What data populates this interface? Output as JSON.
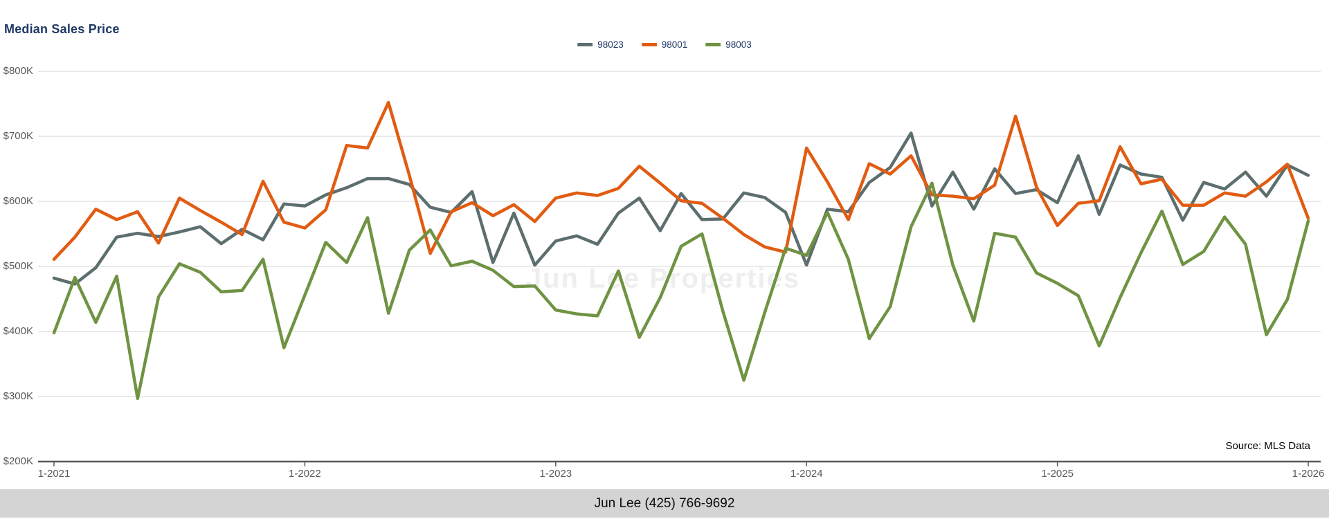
{
  "page": {
    "title": "Median Sales Price"
  },
  "watermark": "Jun Lee Properties",
  "source_label": "Source: MLS Data",
  "footer": {
    "text": "Jun Lee (425) 766-9692"
  },
  "legend": {
    "items": [
      {
        "label": "98023"
      },
      {
        "label": "98001"
      },
      {
        "label": "98003"
      }
    ]
  },
  "chart_data": {
    "type": "line",
    "title": "Median Sales Price",
    "unit": "USD thousands",
    "grid": "horizontal",
    "legend_position": "top-center",
    "x_axis": {
      "start": "Jan 2021",
      "end": "Jan 2026",
      "total_months": 61,
      "tick_labels": [
        "1-2021",
        "1-2022",
        "1-2023",
        "1-2024",
        "1-2025",
        "1-2026"
      ],
      "tick_month_indices": [
        0,
        12,
        24,
        36,
        48,
        60
      ]
    },
    "y_axis": {
      "min": 200,
      "max": 800,
      "step": 100,
      "tick_labels": [
        "$800K",
        "$700K",
        "$600K",
        "$500K",
        "$400K",
        "$300K",
        "$200K"
      ],
      "tick_values": [
        800,
        700,
        600,
        500,
        400,
        300,
        200
      ]
    },
    "series": [
      {
        "name": "98023",
        "color": "#5d6e6e",
        "values": [
          482,
          473,
          498,
          545,
          551,
          546,
          553,
          561,
          535,
          557,
          541,
          596,
          593,
          610,
          621,
          635,
          635,
          626,
          591,
          583,
          615,
          506,
          582,
          502,
          539,
          547,
          534,
          582,
          605,
          555,
          612,
          572,
          573,
          613,
          606,
          583,
          502,
          588,
          584,
          629,
          652,
          705,
          593,
          645,
          588,
          650,
          612,
          618,
          598,
          670,
          580,
          656,
          642,
          637,
          571,
          629,
          619,
          645,
          608,
          656,
          640
        ]
      },
      {
        "name": "98001",
        "color": "#e15c12",
        "values": [
          511,
          545,
          588,
          572,
          584,
          536,
          605,
          586,
          568,
          549,
          631,
          568,
          559,
          587,
          686,
          682,
          752,
          640,
          520,
          584,
          598,
          578,
          595,
          569,
          605,
          613,
          609,
          620,
          654,
          628,
          601,
          597,
          574,
          549,
          530,
          522,
          682,
          630,
          572,
          658,
          642,
          670,
          610,
          608,
          604,
          625,
          731,
          622,
          563,
          597,
          601,
          684,
          627,
          634,
          594,
          594,
          613,
          608,
          630,
          657,
          574
        ]
      },
      {
        "name": "98003",
        "color": "#6f9343",
        "values": [
          398,
          483,
          414,
          485,
          297,
          453,
          504,
          491,
          461,
          463,
          511,
          375,
          456,
          537,
          506,
          575,
          428,
          525,
          556,
          501,
          508,
          494,
          469,
          470,
          433,
          427,
          424,
          493,
          391,
          452,
          531,
          550,
          431,
          325,
          429,
          528,
          517,
          583,
          511,
          389,
          438,
          561,
          628,
          502,
          416,
          551,
          545,
          490,
          474,
          455,
          378,
          452,
          521,
          585,
          503,
          523,
          576,
          534,
          395,
          449,
          570
        ]
      }
    ]
  }
}
